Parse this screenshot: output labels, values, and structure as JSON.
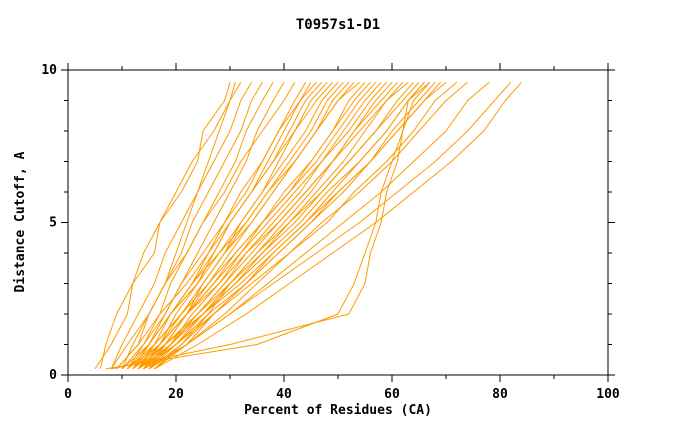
{
  "chart_data": {
    "type": "line",
    "title": "T0957s1-D1",
    "xlabel": "Percent of Residues (CA)",
    "ylabel": "Distance Cutoff, A",
    "xlim": [
      0,
      100
    ],
    "ylim": [
      0,
      10
    ],
    "x_major_ticks": [
      0,
      20,
      40,
      60,
      80,
      100
    ],
    "x_minor_ticks": [
      10,
      30,
      50,
      70,
      90
    ],
    "y_major_ticks": [
      0,
      5,
      10
    ],
    "y_minor_ticks": [
      1,
      2,
      3,
      4,
      6,
      7,
      8,
      9
    ],
    "grid": false,
    "legend": "none",
    "line_color": "#FF9A00",
    "frame_color": "#000000",
    "y_levels": [
      0.2,
      1,
      2,
      3,
      4,
      5,
      6,
      7,
      8,
      9,
      9.6
    ],
    "series": [
      [
        5,
        8,
        11,
        12,
        16,
        17,
        21,
        24,
        25,
        29,
        30
      ],
      [
        6,
        7,
        9,
        12,
        14,
        17,
        20,
        23,
        27,
        30,
        32
      ],
      [
        8,
        10,
        13,
        16,
        18,
        21,
        24,
        27,
        30,
        32,
        34
      ],
      [
        9,
        13,
        15,
        18,
        20,
        22,
        24,
        26,
        28,
        30,
        31
      ],
      [
        10,
        12,
        15,
        18,
        21,
        23,
        26,
        29,
        32,
        34,
        36
      ],
      [
        11,
        14,
        17,
        19,
        22,
        25,
        28,
        31,
        33,
        36,
        38
      ],
      [
        12,
        15,
        18,
        21,
        24,
        27,
        30,
        33,
        35,
        38,
        40
      ],
      [
        8,
        11,
        15,
        18,
        22,
        25,
        29,
        32,
        36,
        40,
        42
      ],
      [
        13,
        16,
        19,
        23,
        26,
        29,
        33,
        36,
        39,
        42,
        44
      ],
      [
        14,
        17,
        20,
        24,
        27,
        30,
        34,
        37,
        40,
        43,
        45
      ],
      [
        10,
        14,
        18,
        21,
        25,
        29,
        32,
        36,
        39,
        43,
        46
      ],
      [
        12,
        15,
        19,
        23,
        27,
        30,
        34,
        38,
        41,
        44,
        47
      ],
      [
        15,
        18,
        22,
        25,
        29,
        32,
        36,
        39,
        42,
        45,
        48
      ],
      [
        9,
        13,
        17,
        22,
        26,
        30,
        34,
        38,
        42,
        46,
        49
      ],
      [
        11,
        15,
        19,
        23,
        28,
        32,
        36,
        40,
        44,
        47,
        50
      ],
      [
        13,
        17,
        21,
        25,
        29,
        33,
        37,
        41,
        45,
        48,
        51
      ],
      [
        14,
        18,
        22,
        26,
        30,
        34,
        38,
        42,
        46,
        49,
        52
      ],
      [
        12,
        16,
        21,
        25,
        29,
        34,
        38,
        42,
        46,
        50,
        53
      ],
      [
        10,
        15,
        19,
        24,
        28,
        33,
        37,
        42,
        46,
        50,
        54
      ],
      [
        15,
        19,
        23,
        28,
        32,
        36,
        41,
        45,
        49,
        52,
        55
      ],
      [
        13,
        18,
        22,
        27,
        31,
        36,
        40,
        45,
        49,
        53,
        56
      ],
      [
        11,
        16,
        21,
        26,
        31,
        36,
        41,
        46,
        50,
        54,
        57
      ],
      [
        14,
        19,
        24,
        29,
        33,
        38,
        43,
        47,
        51,
        55,
        58
      ],
      [
        12,
        17,
        22,
        27,
        32,
        37,
        42,
        47,
        52,
        56,
        59
      ],
      [
        16,
        21,
        26,
        30,
        35,
        40,
        45,
        49,
        53,
        57,
        60
      ],
      [
        13,
        18,
        24,
        29,
        34,
        39,
        44,
        49,
        53,
        58,
        61
      ],
      [
        15,
        20,
        25,
        30,
        35,
        41,
        46,
        51,
        55,
        59,
        62
      ],
      [
        11,
        17,
        22,
        28,
        33,
        39,
        44,
        49,
        54,
        59,
        63
      ],
      [
        14,
        19,
        25,
        31,
        36,
        42,
        47,
        52,
        57,
        61,
        64
      ],
      [
        12,
        18,
        24,
        30,
        36,
        41,
        47,
        52,
        57,
        62,
        65
      ],
      [
        16,
        22,
        27,
        33,
        38,
        44,
        49,
        54,
        59,
        63,
        66
      ],
      [
        13,
        19,
        25,
        31,
        37,
        43,
        48,
        54,
        59,
        63,
        67
      ],
      [
        15,
        21,
        27,
        33,
        39,
        45,
        50,
        56,
        60,
        65,
        68
      ],
      [
        14,
        20,
        26,
        33,
        39,
        45,
        51,
        56,
        61,
        66,
        69
      ],
      [
        12,
        18,
        25,
        32,
        38,
        44,
        50,
        56,
        61,
        66,
        70
      ],
      [
        16,
        22,
        29,
        35,
        41,
        48,
        53,
        59,
        64,
        68,
        72
      ],
      [
        13,
        20,
        27,
        34,
        41,
        47,
        54,
        60,
        65,
        70,
        74
      ],
      [
        15,
        22,
        30,
        37,
        44,
        51,
        58,
        64,
        70,
        74,
        78
      ],
      [
        14,
        22,
        30,
        38,
        46,
        54,
        61,
        68,
        74,
        79,
        82
      ],
      [
        16,
        24,
        33,
        41,
        49,
        57,
        64,
        71,
        77,
        81,
        84
      ],
      [
        8,
        30,
        52,
        55,
        56,
        58,
        59,
        61,
        62,
        64,
        67
      ],
      [
        7,
        35,
        50,
        53,
        55,
        57,
        58,
        60,
        62,
        63,
        66
      ]
    ]
  }
}
